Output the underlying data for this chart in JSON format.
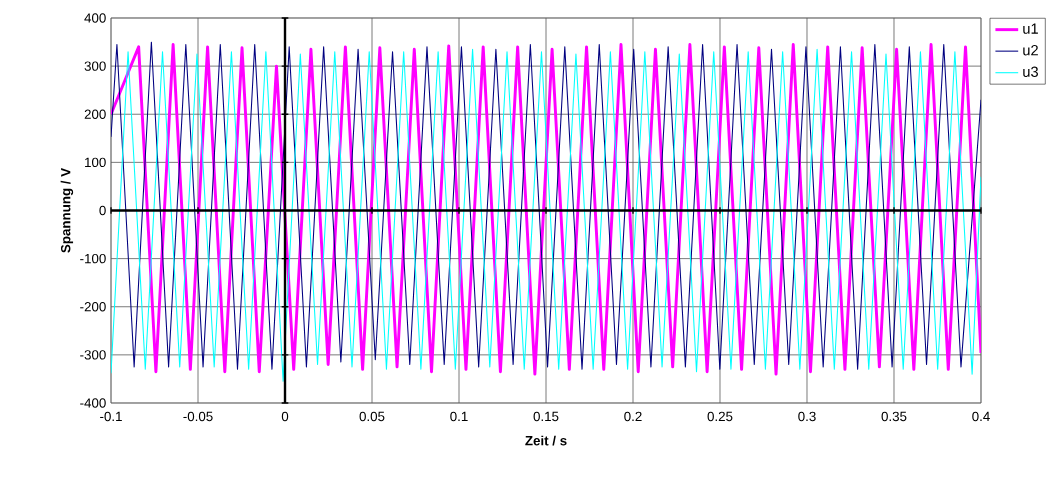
{
  "chart_data": {
    "type": "line",
    "xlabel": "Zeit / s",
    "ylabel": "Spannung / V",
    "xlim": [
      -0.1,
      0.4
    ],
    "xticks": [
      -0.1,
      -0.05,
      0,
      0.05,
      0.1,
      0.15,
      0.2,
      0.25,
      0.3,
      0.35,
      0.4
    ],
    "ylim": [
      -400,
      400
    ],
    "yticks": [
      -400,
      -300,
      -200,
      -100,
      0,
      100,
      200,
      300,
      400
    ],
    "grid": true,
    "legend": "top right",
    "marker": "none",
    "line_style": "solid",
    "series": [
      {
        "name": "u1",
        "color": "#ff00ff",
        "x": [
          -0.1,
          -0.0841,
          -0.0742,
          -0.0643,
          -0.0544,
          -0.0445,
          -0.0346,
          -0.0247,
          -0.0148,
          -0.0049,
          0.005,
          0.0149,
          0.0248,
          0.0347,
          0.0446,
          0.0545,
          0.0644,
          0.0743,
          0.0842,
          0.0941,
          0.104,
          0.1139,
          0.1238,
          0.1337,
          0.1436,
          0.1535,
          0.1634,
          0.1733,
          0.1832,
          0.1931,
          0.203,
          0.2129,
          0.2228,
          0.2327,
          0.2426,
          0.2525,
          0.2624,
          0.2723,
          0.2822,
          0.2921,
          0.302,
          0.3119,
          0.3218,
          0.3317,
          0.3416,
          0.3515,
          0.3614,
          0.3713,
          0.3812,
          0.3911,
          0.4
        ],
        "values": [
          200,
          340,
          -335,
          345,
          -330,
          340,
          -335,
          338,
          -335,
          300,
          -330,
          335,
          -320,
          340,
          -330,
          338,
          -325,
          335,
          -335,
          342,
          -330,
          340,
          -335,
          340,
          -340,
          335,
          -330,
          340,
          -330,
          345,
          -335,
          335,
          -325,
          345,
          -335,
          340,
          -330,
          338,
          -340,
          345,
          -335,
          340,
          -330,
          338,
          -325,
          335,
          -330,
          345,
          -330,
          340,
          -296
        ]
      },
      {
        "name": "u2",
        "color": "#000080",
        "x": [
          -0.1,
          -0.0966,
          -0.0867,
          -0.0768,
          -0.0669,
          -0.057,
          -0.0471,
          -0.0372,
          -0.0273,
          -0.0174,
          -0.0075,
          0.0024,
          0.0123,
          0.0222,
          0.0321,
          0.042,
          0.0519,
          0.0618,
          0.0717,
          0.0816,
          0.0915,
          0.1014,
          0.1113,
          0.1212,
          0.1311,
          0.141,
          0.1509,
          0.1608,
          0.1707,
          0.1806,
          0.1905,
          0.2004,
          0.2103,
          0.2202,
          0.2301,
          0.24,
          0.2499,
          0.2598,
          0.2697,
          0.2796,
          0.2895,
          0.2994,
          0.3093,
          0.3192,
          0.3291,
          0.339,
          0.3489,
          0.3588,
          0.3687,
          0.3786,
          0.3885,
          0.4
        ],
        "values": [
          153,
          345,
          -325,
          350,
          -325,
          345,
          -325,
          345,
          -330,
          345,
          -330,
          340,
          -325,
          340,
          -315,
          335,
          -310,
          330,
          -320,
          340,
          -320,
          340,
          -325,
          335,
          -320,
          345,
          -325,
          340,
          -330,
          345,
          -320,
          335,
          -325,
          340,
          -325,
          345,
          -330,
          345,
          -320,
          335,
          -320,
          340,
          -325,
          340,
          -330,
          345,
          -325,
          340,
          -320,
          345,
          -325,
          230
        ]
      },
      {
        "name": "u3",
        "color": "#00ffff",
        "x": [
          -0.1,
          -0.0902,
          -0.0803,
          -0.0704,
          -0.0605,
          -0.0506,
          -0.0407,
          -0.0308,
          -0.0209,
          -0.011,
          -0.0011,
          0.0088,
          0.0187,
          0.0286,
          0.0385,
          0.0484,
          0.0583,
          0.0682,
          0.0781,
          0.088,
          0.0979,
          0.1078,
          0.1177,
          0.1276,
          0.1375,
          0.1474,
          0.1573,
          0.1672,
          0.1771,
          0.187,
          0.1969,
          0.2068,
          0.2167,
          0.2266,
          0.2365,
          0.2464,
          0.2563,
          0.2662,
          0.2761,
          0.286,
          0.2959,
          0.3058,
          0.3157,
          0.3256,
          0.3355,
          0.3454,
          0.3553,
          0.3652,
          0.3751,
          0.385,
          0.3949,
          0.4
        ],
        "values": [
          -338,
          330,
          -330,
          330,
          -325,
          325,
          -325,
          330,
          -330,
          330,
          -355,
          325,
          -320,
          330,
          -325,
          330,
          -330,
          330,
          -330,
          330,
          -330,
          335,
          -325,
          330,
          -330,
          330,
          -330,
          325,
          -330,
          330,
          -330,
          330,
          -325,
          325,
          -335,
          330,
          -330,
          330,
          -330,
          330,
          -330,
          335,
          -330,
          330,
          -330,
          325,
          -330,
          330,
          -330,
          330,
          -340,
          70
        ]
      }
    ]
  }
}
